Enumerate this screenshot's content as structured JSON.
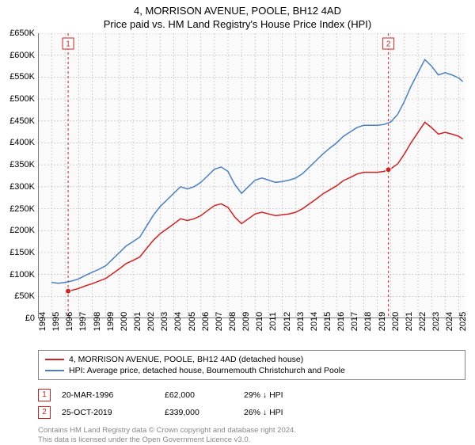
{
  "title_line1": "4, MORRISON AVENUE, POOLE, BH12 4AD",
  "title_line2": "Price paid vs. HM Land Registry's House Price Index (HPI)",
  "chart": {
    "type": "line",
    "background_color": "#fafafa",
    "grid_color": "#bfbfbf",
    "grid_dash": "2,2",
    "axis_color": "#000000",
    "ylim": [
      0,
      650000
    ],
    "ytick_step": 50000,
    "ytick_labels": [
      "£0",
      "£50K",
      "£100K",
      "£150K",
      "£200K",
      "£250K",
      "£300K",
      "£350K",
      "£400K",
      "£450K",
      "£500K",
      "£550K",
      "£600K",
      "£650K"
    ],
    "xlim": [
      1994,
      2025.5
    ],
    "xtick_years": [
      1994,
      1995,
      1996,
      1997,
      1998,
      1999,
      2000,
      2001,
      2002,
      2003,
      2004,
      2005,
      2006,
      2007,
      2008,
      2009,
      2010,
      2011,
      2012,
      2013,
      2014,
      2015,
      2016,
      2017,
      2018,
      2019,
      2020,
      2021,
      2022,
      2023,
      2024,
      2025
    ],
    "series": [
      {
        "key": "hpi",
        "label": "HPI: Average price, detached house, Bournemouth Christchurch and Poole",
        "color": "#4a7fc6",
        "line_width": 1.5,
        "data": [
          [
            1995.0,
            82000
          ],
          [
            1995.5,
            80000
          ],
          [
            1996.0,
            82000
          ],
          [
            1996.5,
            85000
          ],
          [
            1997.0,
            90000
          ],
          [
            1997.5,
            98000
          ],
          [
            1998.0,
            105000
          ],
          [
            1998.5,
            112000
          ],
          [
            1999.0,
            120000
          ],
          [
            1999.5,
            135000
          ],
          [
            2000.0,
            150000
          ],
          [
            2000.5,
            165000
          ],
          [
            2001.0,
            175000
          ],
          [
            2001.5,
            185000
          ],
          [
            2002.0,
            210000
          ],
          [
            2002.5,
            235000
          ],
          [
            2003.0,
            255000
          ],
          [
            2003.5,
            270000
          ],
          [
            2004.0,
            285000
          ],
          [
            2004.5,
            300000
          ],
          [
            2005.0,
            295000
          ],
          [
            2005.5,
            300000
          ],
          [
            2006.0,
            310000
          ],
          [
            2006.5,
            325000
          ],
          [
            2007.0,
            340000
          ],
          [
            2007.5,
            345000
          ],
          [
            2008.0,
            335000
          ],
          [
            2008.5,
            305000
          ],
          [
            2009.0,
            285000
          ],
          [
            2009.5,
            300000
          ],
          [
            2010.0,
            315000
          ],
          [
            2010.5,
            320000
          ],
          [
            2011.0,
            315000
          ],
          [
            2011.5,
            310000
          ],
          [
            2012.0,
            312000
          ],
          [
            2012.5,
            315000
          ],
          [
            2013.0,
            320000
          ],
          [
            2013.5,
            330000
          ],
          [
            2014.0,
            345000
          ],
          [
            2014.5,
            360000
          ],
          [
            2015.0,
            375000
          ],
          [
            2015.5,
            388000
          ],
          [
            2016.0,
            400000
          ],
          [
            2016.5,
            415000
          ],
          [
            2017.0,
            425000
          ],
          [
            2017.5,
            435000
          ],
          [
            2018.0,
            440000
          ],
          [
            2018.5,
            440000
          ],
          [
            2019.0,
            440000
          ],
          [
            2019.5,
            442000
          ],
          [
            2020.0,
            448000
          ],
          [
            2020.5,
            465000
          ],
          [
            2021.0,
            495000
          ],
          [
            2021.5,
            530000
          ],
          [
            2022.0,
            560000
          ],
          [
            2022.5,
            590000
          ],
          [
            2023.0,
            575000
          ],
          [
            2023.5,
            555000
          ],
          [
            2024.0,
            560000
          ],
          [
            2024.5,
            555000
          ],
          [
            2025.0,
            548000
          ],
          [
            2025.3,
            540000
          ]
        ]
      },
      {
        "key": "property",
        "label": "4, MORRISON AVENUE, POOLE, BH12 4AD (detached house)",
        "color": "#d62020",
        "line_width": 1.5,
        "data": [
          [
            1996.22,
            62000
          ],
          [
            1996.5,
            64000
          ],
          [
            1997.0,
            68000
          ],
          [
            1997.5,
            74000
          ],
          [
            1998.0,
            79000
          ],
          [
            1998.5,
            85000
          ],
          [
            1999.0,
            91000
          ],
          [
            1999.5,
            102000
          ],
          [
            2000.0,
            113000
          ],
          [
            2000.5,
            125000
          ],
          [
            2001.0,
            132000
          ],
          [
            2001.5,
            140000
          ],
          [
            2002.0,
            159000
          ],
          [
            2002.5,
            178000
          ],
          [
            2003.0,
            193000
          ],
          [
            2003.5,
            204000
          ],
          [
            2004.0,
            215000
          ],
          [
            2004.5,
            227000
          ],
          [
            2005.0,
            223000
          ],
          [
            2005.5,
            227000
          ],
          [
            2006.0,
            234000
          ],
          [
            2006.5,
            246000
          ],
          [
            2007.0,
            257000
          ],
          [
            2007.5,
            261000
          ],
          [
            2008.0,
            253000
          ],
          [
            2008.5,
            231000
          ],
          [
            2009.0,
            216000
          ],
          [
            2009.5,
            227000
          ],
          [
            2010.0,
            238000
          ],
          [
            2010.5,
            242000
          ],
          [
            2011.0,
            238000
          ],
          [
            2011.5,
            234000
          ],
          [
            2012.0,
            236000
          ],
          [
            2012.5,
            238000
          ],
          [
            2013.0,
            242000
          ],
          [
            2013.5,
            250000
          ],
          [
            2014.0,
            261000
          ],
          [
            2014.5,
            272000
          ],
          [
            2015.0,
            284000
          ],
          [
            2015.5,
            293000
          ],
          [
            2016.0,
            302000
          ],
          [
            2016.5,
            314000
          ],
          [
            2017.0,
            321000
          ],
          [
            2017.5,
            329000
          ],
          [
            2018.0,
            333000
          ],
          [
            2018.5,
            333000
          ],
          [
            2019.0,
            333000
          ],
          [
            2019.5,
            335000
          ],
          [
            2019.82,
            339000
          ],
          [
            2020.0,
            341000
          ],
          [
            2020.5,
            352000
          ],
          [
            2021.0,
            375000
          ],
          [
            2021.5,
            401000
          ],
          [
            2022.0,
            424000
          ],
          [
            2022.5,
            447000
          ],
          [
            2023.0,
            435000
          ],
          [
            2023.5,
            420000
          ],
          [
            2024.0,
            424000
          ],
          [
            2024.5,
            420000
          ],
          [
            2025.0,
            415000
          ],
          [
            2025.3,
            409000
          ]
        ]
      }
    ],
    "markers": [
      {
        "num": "1",
        "date": "20-MAR-1996",
        "price": "£62,000",
        "hpi": "29% ↓ HPI",
        "x": 1996.22,
        "y": 62000,
        "color": "#d62020"
      },
      {
        "num": "2",
        "date": "25-OCT-2019",
        "price": "£339,000",
        "hpi": "26% ↓ HPI",
        "x": 2019.82,
        "y": 339000,
        "color": "#d62020"
      }
    ],
    "marker_line_color": "#d62020",
    "marker_line_dash": "3,3",
    "marker_box_bg": "#ffffff",
    "marker_box_border": "#d62020",
    "label_fontsize": 11,
    "title_fontsize": 13
  },
  "legend": {
    "border_color": "#888888",
    "items": [
      {
        "color": "#d62020",
        "text": "4, MORRISON AVENUE, POOLE, BH12 4AD (detached house)"
      },
      {
        "color": "#4a7fc6",
        "text": "HPI: Average price, detached house, Bournemouth Christchurch and Poole"
      }
    ]
  },
  "footnote_line1": "Contains HM Land Registry data © Crown copyright and database right 2024.",
  "footnote_line2": "This data is licensed under the Open Government Licence v3.0."
}
